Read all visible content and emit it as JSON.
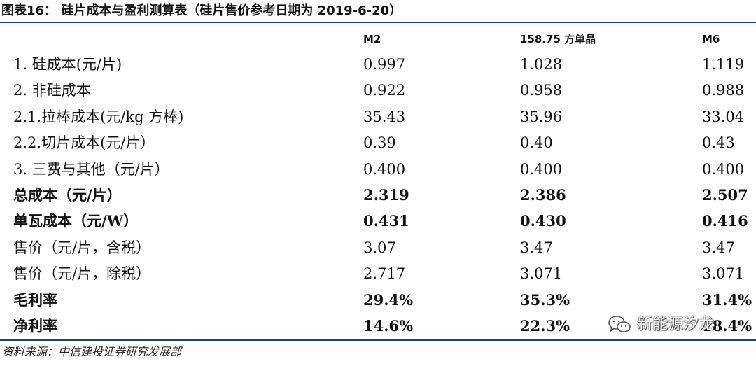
{
  "title": "图表16： 硅片成本与盈利测算表（硅片售价参考日期为 2019-6-20）",
  "table": {
    "headers": [
      "",
      "M2",
      "158.75 方单晶",
      "M6"
    ],
    "rows": [
      {
        "label": "1. 硅成本(元/片)",
        "values": [
          "0.997",
          "1.028",
          "1.119"
        ],
        "bold": false
      },
      {
        "label": "2. 非硅成本",
        "values": [
          "0.922",
          "0.958",
          "0.988"
        ],
        "bold": false
      },
      {
        "label": "2.1.拉棒成本(元/kg 方棒)",
        "values": [
          "35.43",
          "35.96",
          "33.04"
        ],
        "bold": false
      },
      {
        "label": "2.2.切片成本(元/片）",
        "values": [
          "0.39",
          "0.40",
          "0.43"
        ],
        "bold": false
      },
      {
        "label": "3. 三费与其他（元/片）",
        "values": [
          "0.400",
          "0.400",
          "0.400"
        ],
        "bold": false
      },
      {
        "label": "总成本（元/片）",
        "values": [
          "2.319",
          "2.386",
          "2.507"
        ],
        "bold": true
      },
      {
        "label": "单瓦成本（元/W）",
        "values": [
          "0.431",
          "0.430",
          "0.416"
        ],
        "bold": true
      },
      {
        "label": "售价（元/片，含税）",
        "values": [
          "3.07",
          "3.47",
          "3.47"
        ],
        "bold": false
      },
      {
        "label": "售价（元/片，除税）",
        "values": [
          "2.717",
          "3.071",
          "3.071"
        ],
        "bold": false
      },
      {
        "label": "毛利率",
        "values": [
          "29.4%",
          "35.3%",
          "31.4%"
        ],
        "bold": true
      },
      {
        "label": "净利率",
        "values": [
          "14.6%",
          "22.3%",
          "18.4%"
        ],
        "bold": true
      }
    ]
  },
  "source": "资料来源：中信建投证券研究发展部",
  "watermark": {
    "text": "新能源汐龙",
    "icon": "wechat-icon"
  },
  "colors": {
    "rule": "#1c3f86"
  }
}
